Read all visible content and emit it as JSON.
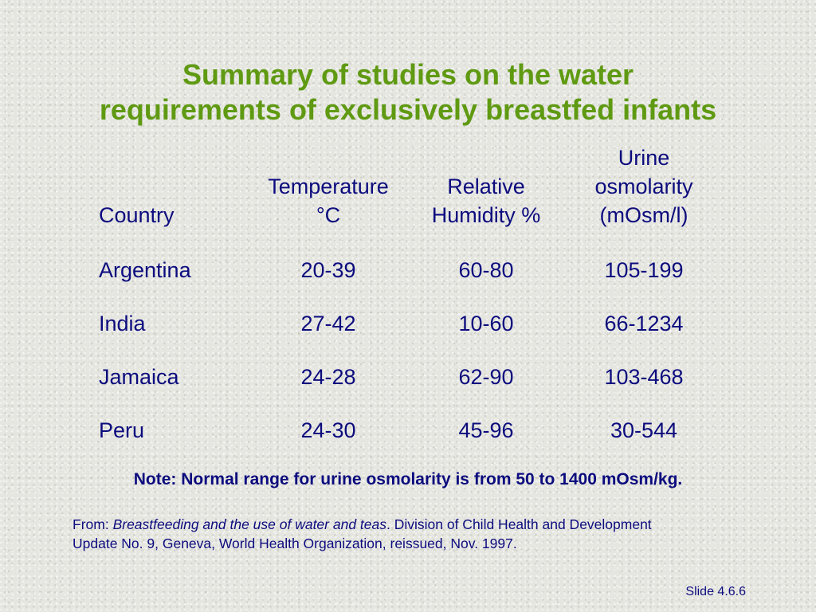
{
  "title": {
    "line1": "Summary of studies on the water",
    "line2": "requirements of exclusively breastfed infants"
  },
  "table": {
    "headers": {
      "country": "Country",
      "temperature": [
        "Temperature",
        "°C"
      ],
      "humidity": [
        "Relative",
        "Humidity %"
      ],
      "osmolarity": [
        "Urine",
        "osmolarity",
        "(mOsm/l)"
      ]
    },
    "rows": [
      {
        "country": "Argentina",
        "temperature": "20-39",
        "humidity": "60-80",
        "osmolarity": "105-199"
      },
      {
        "country": "India",
        "temperature": "27-42",
        "humidity": "10-60",
        "osmolarity": "66-1234"
      },
      {
        "country": "Jamaica",
        "temperature": "24-28",
        "humidity": "62-90",
        "osmolarity": "103-468"
      },
      {
        "country": "Peru",
        "temperature": "24-30",
        "humidity": "45-96",
        "osmolarity": "30-544"
      }
    ]
  },
  "note": "Note: Normal range for urine osmolarity is from 50 to 1400 mOsm/kg.",
  "source": {
    "prefix": "From: ",
    "book": "Breastfeeding and the use of water and teas",
    "after_book": ".  Division of Child Health and Development",
    "line2": "Update No. 9, Geneva, World Health Organization, reissued, Nov. 1997."
  },
  "slide_number": "Slide 4.6.6"
}
